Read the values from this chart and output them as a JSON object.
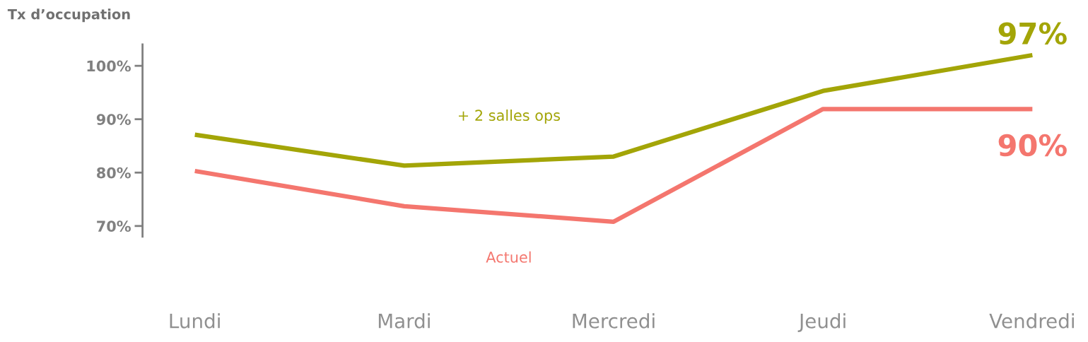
{
  "chart_data": {
    "type": "line",
    "ylabel": "Tx d’occupation",
    "categories": [
      "Lundi",
      "Mardi",
      "Mercredi",
      "Jeudi",
      "Vendredi"
    ],
    "series": [
      {
        "name": "+ 2 salles ops",
        "color": "#a3a507",
        "values": [
          87.1,
          81.3,
          83,
          95.3,
          102
        ]
      },
      {
        "name": "Actuel",
        "color": "#f4766e",
        "values": [
          80.3,
          73.7,
          70.8,
          91.9,
          91.9
        ]
      }
    ],
    "annotations": [
      "97%",
      "90%"
    ],
    "ylim": [
      68,
      104
    ],
    "yticks": [
      {
        "value": 70,
        "label": "70%"
      },
      {
        "value": 80,
        "label": "80%"
      },
      {
        "value": 90,
        "label": "90%"
      },
      {
        "value": 100,
        "label": "100%"
      }
    ],
    "grid": false,
    "legend": false,
    "marker": "none",
    "line_style": "solid"
  }
}
